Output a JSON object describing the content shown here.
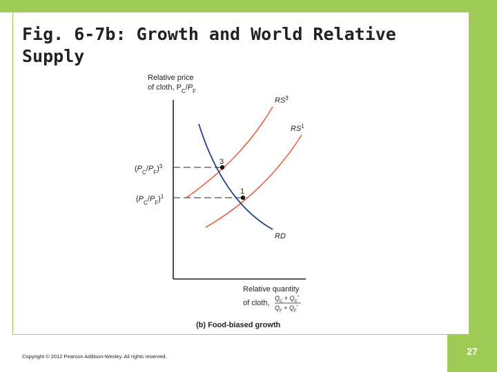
{
  "slide": {
    "title": "Fig. 6-7b: Growth and World Relative Supply",
    "copyright": "Copyright © 2012 Pearson Addison-Wesley. All rights reserved.",
    "page_number": "27"
  },
  "colors": {
    "accent": "#9ecb55",
    "supply": "#e8603c",
    "demand": "#1f3f8f"
  },
  "diagram": {
    "y_axis_label_line1": "Relative price",
    "y_axis_label_line2": "of cloth, P",
    "x_axis_label_line1": "Relative quantity",
    "x_axis_label_line2": "of cloth,",
    "x_fraction_num": "Q",
    "x_fraction_den": "Q",
    "caption": "(b) Food-biased growth",
    "curve_rs3": "RS",
    "curve_rs3_sup": "3",
    "curve_rs1": "RS",
    "curve_rs1_sup": "1",
    "curve_rd": "RD",
    "point_3": "3",
    "point_1": "1",
    "price_3_sup": "3",
    "price_1_sup": "1"
  }
}
